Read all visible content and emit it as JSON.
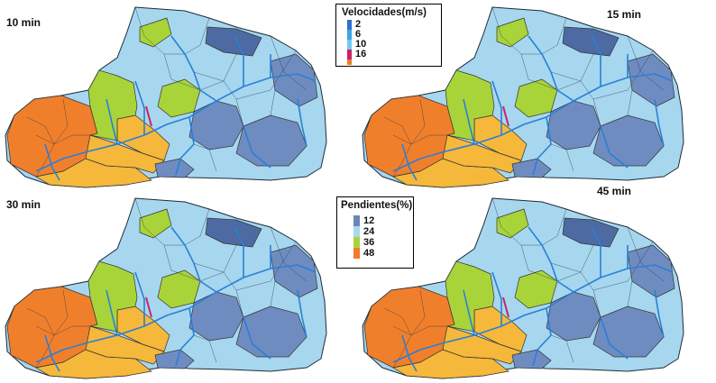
{
  "panels": [
    {
      "label": "10 min"
    },
    {
      "label": "15 min"
    },
    {
      "label": "30 min"
    },
    {
      "label": "45 min"
    }
  ],
  "legend_velocity": {
    "title": "Velocidades(m/s)",
    "items": [
      {
        "label": "2",
        "color": "#2f6fd0"
      },
      {
        "label": "6",
        "color": "#3aa7e6"
      },
      {
        "label": "10",
        "color": "#6fcaf0"
      },
      {
        "label": "16",
        "color": "#cc2266"
      },
      {
        "label": "",
        "color": "#f27a22"
      }
    ]
  },
  "legend_slope": {
    "title": "Pendientes(%)",
    "items": [
      {
        "label": "12",
        "color": "#6a86b8"
      },
      {
        "label": "24",
        "color": "#a9d8ef"
      },
      {
        "label": "36",
        "color": "#a8d43a"
      },
      {
        "label": "48",
        "color": "#f17c2a"
      }
    ]
  },
  "colors": {
    "orange": "#f07f2c",
    "yellow": "#f5b83a",
    "green": "#a8d43a",
    "light_blue": "#a6d7ee",
    "steel_blue": "#6f8cc0",
    "dark_blue": "#4d6aa3"
  }
}
